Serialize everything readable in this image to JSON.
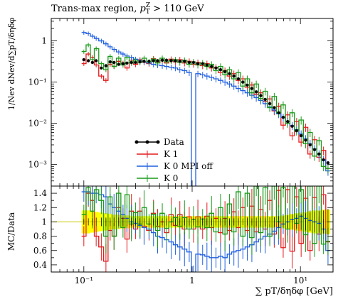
{
  "chart_data": {
    "type": "line",
    "title": "Trans-max region, p_T^Z > 110 GeV",
    "title_parts": {
      "text": "Trans-max region, ",
      "var": "p",
      "sub": "T",
      "sup": "Z",
      "cut": " > 110 GeV"
    },
    "xlabel": "∑ pT/δηδφ [GeV]",
    "ylabel_main": "1/Nev dNev/d∑pT/δηδφ",
    "ylabel_ratio": "MC/Data",
    "xscale": "log",
    "xlim": [
      0.05,
      20
    ],
    "main_ylim": [
      0.0003,
      3.5
    ],
    "main_yscale": "log",
    "ratio_ylim": [
      0.3,
      1.5
    ],
    "x_tick_labels": [
      "10⁻¹",
      "1",
      "10¹"
    ],
    "x_ticks": [
      0.1,
      1,
      10
    ],
    "main_y_ticks": [
      1,
      0.1,
      0.01,
      0.001
    ],
    "main_y_tick_labels": [
      "1",
      "10⁻¹",
      "10⁻²",
      "10⁻³"
    ],
    "ratio_y_ticks": [
      0.4,
      0.6,
      0.8,
      1,
      1.2,
      1.4
    ],
    "ratio_y_tick_labels": [
      "0.4",
      "0.6",
      "0.8",
      "1",
      "1.2",
      "1.4"
    ],
    "legend_position": "lower-left",
    "legend": [
      {
        "label": "Data",
        "color": "#000000",
        "marker": "dot"
      },
      {
        "label": "K 1",
        "color": "#e41a1c"
      },
      {
        "label": "K 0 MPI off",
        "color": "#1f5fe0"
      },
      {
        "label": "K 0",
        "color": "#1a9a1a"
      }
    ],
    "uncertainty_band_color": "#ffff00",
    "x": [
      0.1,
      0.11,
      0.12,
      0.13,
      0.145,
      0.16,
      0.175,
      0.19,
      0.21,
      0.23,
      0.25,
      0.275,
      0.3,
      0.33,
      0.36,
      0.4,
      0.44,
      0.48,
      0.53,
      0.58,
      0.64,
      0.7,
      0.77,
      0.85,
      0.94,
      1.03,
      1.13,
      1.25,
      1.37,
      1.51,
      1.66,
      1.83,
      2.01,
      2.21,
      2.43,
      2.67,
      2.94,
      3.23,
      3.56,
      3.91,
      4.3,
      4.73,
      5.21,
      5.73,
      6.3,
      6.93,
      7.62,
      8.39,
      9.22,
      10.15,
      11.16,
      12.28,
      13.5,
      14.85,
      16.34,
      17.97
    ],
    "series": [
      {
        "name": "Data",
        "values": [
          0.35,
          0.33,
          0.3,
          0.33,
          0.22,
          0.25,
          0.31,
          0.3,
          0.27,
          0.28,
          0.29,
          0.3,
          0.3,
          0.31,
          0.32,
          0.32,
          0.33,
          0.33,
          0.34,
          0.34,
          0.33,
          0.33,
          0.32,
          0.32,
          0.3,
          0.3,
          0.28,
          0.28,
          0.26,
          0.24,
          0.22,
          0.2,
          0.18,
          0.16,
          0.14,
          0.12,
          0.1,
          0.085,
          0.07,
          0.058,
          0.047,
          0.038,
          0.03,
          0.024,
          0.018,
          0.014,
          0.011,
          0.0085,
          0.0066,
          0.005,
          0.0039,
          0.003,
          0.0023,
          0.0018,
          0.0013,
          0.0011
        ]
      },
      {
        "name": "K 1",
        "values": [
          0.28,
          0.48,
          0.4,
          0.26,
          0.14,
          0.11,
          0.27,
          0.24,
          0.32,
          0.29,
          0.22,
          0.34,
          0.27,
          0.35,
          0.3,
          0.28,
          0.37,
          0.31,
          0.34,
          0.29,
          0.36,
          0.31,
          0.35,
          0.29,
          0.32,
          0.27,
          0.3,
          0.25,
          0.28,
          0.22,
          0.23,
          0.17,
          0.19,
          0.14,
          0.16,
          0.11,
          0.12,
          0.075,
          0.085,
          0.05,
          0.055,
          0.034,
          0.039,
          0.02,
          0.026,
          0.009,
          0.016,
          0.005,
          0.011,
          0.0035,
          0.008,
          0.0018,
          0.004,
          0.0015,
          0.0022,
          0.0008
        ]
      },
      {
        "name": "K 0 MPI off",
        "values": [
          1.6,
          1.5,
          1.3,
          1.15,
          1.0,
          0.85,
          0.72,
          0.62,
          0.54,
          0.48,
          0.43,
          0.4,
          0.36,
          0.33,
          0.31,
          0.29,
          0.27,
          0.26,
          0.25,
          0.24,
          0.23,
          0.22,
          0.2,
          0.19,
          0.17,
          1e-05,
          0.16,
          0.15,
          0.14,
          0.13,
          0.12,
          0.11,
          0.1,
          0.09,
          0.08,
          0.07,
          0.062,
          0.055,
          0.048,
          0.042,
          0.036,
          0.03,
          0.025,
          0.021,
          0.017,
          0.014,
          0.011,
          0.0088,
          0.007,
          0.0055,
          0.0042,
          0.0032,
          0.0024,
          0.0018,
          0.0013,
          0.0007
        ]
      },
      {
        "name": "K 0",
        "values": [
          0.55,
          0.8,
          0.35,
          0.65,
          0.28,
          0.2,
          0.42,
          0.24,
          0.38,
          0.26,
          0.4,
          0.29,
          0.34,
          0.3,
          0.38,
          0.31,
          0.36,
          0.29,
          0.38,
          0.31,
          0.33,
          0.35,
          0.3,
          0.34,
          0.27,
          0.31,
          0.26,
          0.29,
          0.24,
          0.27,
          0.19,
          0.24,
          0.15,
          0.2,
          0.12,
          0.17,
          0.08,
          0.12,
          0.055,
          0.09,
          0.04,
          0.06,
          0.024,
          0.045,
          0.018,
          0.028,
          0.01,
          0.018,
          0.0065,
          0.012,
          0.0032,
          0.006,
          0.0016,
          0.0038,
          0.0009,
          0.0008
        ]
      }
    ],
    "ratio_series": [
      {
        "name": "K 1",
        "values": [
          0.8,
          1.4,
          1.3,
          0.8,
          0.65,
          0.45,
          0.88,
          0.8,
          1.2,
          1.05,
          0.76,
          1.15,
          0.9,
          1.15,
          0.94,
          0.88,
          1.12,
          0.94,
          1.0,
          0.85,
          1.1,
          0.95,
          1.1,
          0.9,
          1.07,
          0.9,
          1.07,
          0.9,
          1.08,
          0.92,
          1.05,
          0.85,
          1.05,
          0.88,
          1.14,
          0.92,
          1.2,
          0.88,
          1.22,
          0.86,
          1.17,
          0.9,
          1.3,
          0.83,
          1.44,
          0.64,
          1.45,
          0.59,
          1.35,
          0.7,
          1.33,
          0.6,
          1.34,
          0.83,
          1.38,
          0.72
        ]
      },
      {
        "name": "K 0 MPI off",
        "values": [
          1.42,
          1.42,
          1.4,
          1.4,
          1.38,
          1.35,
          1.25,
          1.2,
          1.15,
          1.1,
          1.05,
          1.0,
          0.98,
          0.95,
          0.92,
          0.9,
          0.85,
          0.8,
          0.78,
          0.75,
          0.72,
          0.68,
          0.65,
          0.62,
          0.58,
          0.2,
          0.55,
          0.54,
          0.52,
          0.5,
          0.5,
          0.52,
          0.5,
          0.55,
          0.58,
          0.6,
          0.62,
          0.65,
          0.68,
          0.72,
          0.76,
          0.8,
          0.83,
          0.87,
          0.92,
          0.97,
          1.0,
          1.03,
          1.05,
          1.08,
          1.05,
          1.02,
          1.0,
          0.98,
          0.9,
          0.6
        ]
      },
      {
        "name": "K 0",
        "values": [
          1.1,
          1.48,
          1.15,
          1.45,
          1.3,
          0.8,
          1.35,
          0.8,
          1.4,
          0.92,
          1.38,
          0.97,
          1.13,
          0.97,
          1.2,
          0.97,
          1.1,
          0.88,
          1.12,
          0.91,
          1.0,
          1.06,
          0.94,
          1.06,
          0.9,
          1.03,
          0.93,
          1.04,
          0.92,
          1.12,
          0.86,
          1.2,
          0.83,
          1.25,
          0.86,
          1.42,
          0.8,
          1.4,
          0.78,
          1.5,
          0.85,
          1.48,
          0.8,
          1.5,
          1.0,
          1.48,
          0.9,
          1.5,
          0.98,
          1.45,
          0.82,
          1.5,
          0.7,
          1.5,
          0.69,
          0.73
        ]
      },
      {
        "name": "Data",
        "values": [
          1,
          1,
          1,
          1,
          1,
          1,
          1,
          1,
          1,
          1,
          1,
          1,
          1,
          1,
          1,
          1,
          1,
          1,
          1,
          1,
          1,
          1,
          1,
          1,
          1,
          1,
          1,
          1,
          1,
          1,
          1,
          1,
          1,
          1,
          1,
          1,
          1,
          1,
          1,
          1,
          1,
          1,
          1,
          1,
          1,
          1,
          1,
          1,
          1,
          1,
          1,
          1,
          1,
          1,
          1,
          1
        ],
        "errors": [
          0.04,
          0.05,
          0.05,
          0.06,
          0.06,
          0.06,
          0.06,
          0.06,
          0.06,
          0.06,
          0.06,
          0.06,
          0.05,
          0.05,
          0.05,
          0.05,
          0.05,
          0.05,
          0.05,
          0.05,
          0.05,
          0.05,
          0.05,
          0.05,
          0.05,
          0.05,
          0.05,
          0.05,
          0.05,
          0.05,
          0.05,
          0.05,
          0.05,
          0.05,
          0.05,
          0.05,
          0.05,
          0.05,
          0.05,
          0.06,
          0.06,
          0.06,
          0.07,
          0.07,
          0.08,
          0.08,
          0.09,
          0.1,
          0.1,
          0.11,
          0.12,
          0.13,
          0.14,
          0.15,
          0.16,
          0.18
        ]
      }
    ],
    "ratio_band_halfwidth": [
      0.16,
      0.16,
      0.15,
      0.14,
      0.13,
      0.12,
      0.11,
      0.1,
      0.1,
      0.09,
      0.09,
      0.08,
      0.08,
      0.08,
      0.08,
      0.08,
      0.08,
      0.08,
      0.08,
      0.08,
      0.08,
      0.08,
      0.08,
      0.08,
      0.08,
      0.08,
      0.08,
      0.08,
      0.08,
      0.08,
      0.08,
      0.08,
      0.08,
      0.08,
      0.08,
      0.08,
      0.08,
      0.08,
      0.08,
      0.08,
      0.08,
      0.08,
      0.08,
      0.08,
      0.08,
      0.09,
      0.1,
      0.11,
      0.12,
      0.13,
      0.14,
      0.15,
      0.16,
      0.16,
      0.17,
      0.17
    ]
  }
}
